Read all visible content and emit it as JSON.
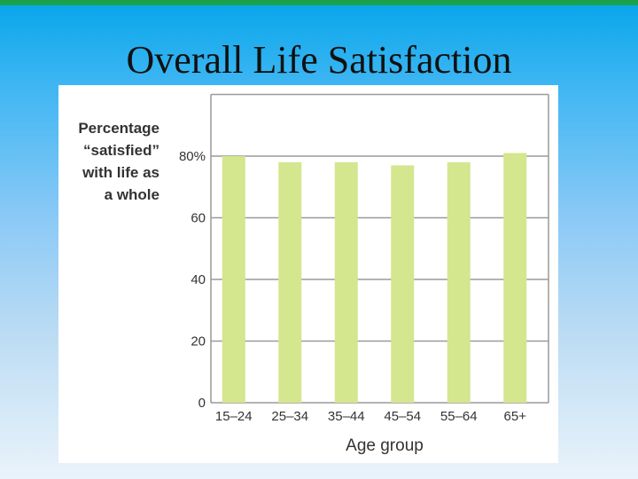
{
  "slide": {
    "title": "Overall Life Satisfaction"
  },
  "chart_data": {
    "type": "bar",
    "categories": [
      "15–24",
      "25–34",
      "35–44",
      "45–54",
      "55–64",
      "65+"
    ],
    "values": [
      80,
      78,
      78,
      77,
      78,
      81
    ],
    "xlabel": "Age group",
    "ylabel_lines": [
      "Percentage",
      "“satisfied”",
      "with life as",
      "a whole"
    ],
    "yticks": [
      {
        "value": 0,
        "label": "0"
      },
      {
        "value": 20,
        "label": "20"
      },
      {
        "value": 40,
        "label": "40"
      },
      {
        "value": 60,
        "label": "60"
      },
      {
        "value": 80,
        "label": "80%"
      }
    ],
    "ylim": [
      0,
      100
    ],
    "grid": true,
    "colors": {
      "bar": "#d4e68e",
      "grid": "#9a9a9a",
      "axis": "#999999"
    }
  }
}
